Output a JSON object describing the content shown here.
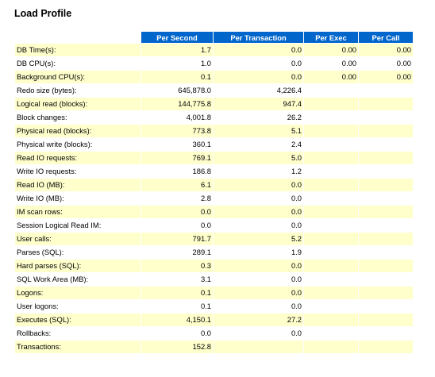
{
  "title": "Load Profile",
  "headers": [
    "",
    "Per Second",
    "Per Transaction",
    "Per Exec",
    "Per Call"
  ],
  "row_colors": {
    "odd": "#ffffcc",
    "even": "#ffffff",
    "header": "#0066cc"
  },
  "rows": [
    [
      "DB Time(s):",
      "1.7",
      "0.0",
      "0.00",
      "0.00"
    ],
    [
      "DB CPU(s):",
      "1.0",
      "0.0",
      "0.00",
      "0.00"
    ],
    [
      "Background CPU(s):",
      "0.1",
      "0.0",
      "0.00",
      "0.00"
    ],
    [
      "Redo size (bytes):",
      "645,878.0",
      "4,226.4",
      "",
      ""
    ],
    [
      "Logical read (blocks):",
      "144,775.8",
      "947.4",
      "",
      ""
    ],
    [
      "Block changes:",
      "4,001.8",
      "26.2",
      "",
      ""
    ],
    [
      "Physical read (blocks):",
      "773.8",
      "5.1",
      "",
      ""
    ],
    [
      "Physical write (blocks):",
      "360.1",
      "2.4",
      "",
      ""
    ],
    [
      "Read IO requests:",
      "769.1",
      "5.0",
      "",
      ""
    ],
    [
      "Write IO requests:",
      "186.8",
      "1.2",
      "",
      ""
    ],
    [
      "Read IO (MB):",
      "6.1",
      "0.0",
      "",
      ""
    ],
    [
      "Write IO (MB):",
      "2.8",
      "0.0",
      "",
      ""
    ],
    [
      "IM scan rows:",
      "0.0",
      "0.0",
      "",
      ""
    ],
    [
      "Session Logical Read IM:",
      "0.0",
      "0.0",
      "",
      ""
    ],
    [
      "User calls:",
      "791.7",
      "5.2",
      "",
      ""
    ],
    [
      "Parses (SQL):",
      "289.1",
      "1.9",
      "",
      ""
    ],
    [
      "Hard parses (SQL):",
      "0.3",
      "0.0",
      "",
      ""
    ],
    [
      "SQL Work Area (MB):",
      "3.1",
      "0.0",
      "",
      ""
    ],
    [
      "Logons:",
      "0.1",
      "0.0",
      "",
      ""
    ],
    [
      "User logons:",
      "0.1",
      "0.0",
      "",
      ""
    ],
    [
      "Executes (SQL):",
      "4,150.1",
      "27.2",
      "",
      ""
    ],
    [
      "Rollbacks:",
      "0.0",
      "0.0",
      "",
      ""
    ],
    [
      "Transactions:",
      "152.8",
      "",
      "",
      ""
    ]
  ]
}
